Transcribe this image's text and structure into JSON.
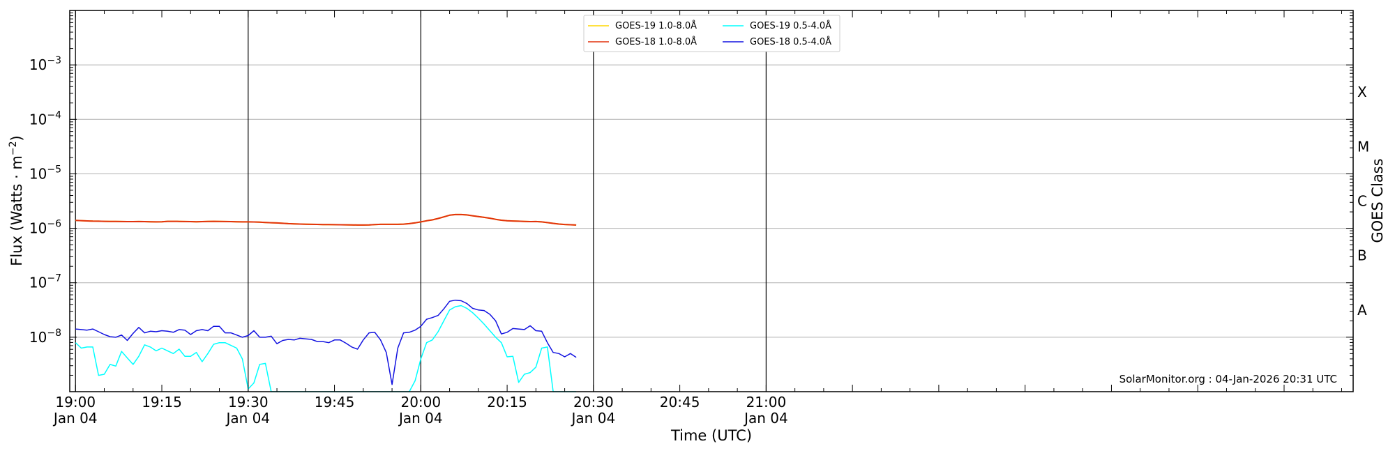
{
  "chart_data": {
    "type": "line",
    "xlabel": "Time (UTC)",
    "ylabel": "Flux (Watts · m$^{-2}$)",
    "ylabel_rendered": "Flux (Watts · m",
    "ylabel_unit_sup": "−2",
    "ylabel_close": ")",
    "right_ylabel": "GOES Class",
    "y_scale": "log",
    "ylim": [
      1e-09,
      0.01
    ],
    "xlim_minutes": [
      -1,
      222
    ],
    "grid": "horizontal at decades",
    "legend_position": "top-center",
    "x_ticks": [
      {
        "minutes": 0,
        "line1": "19:00",
        "line2": "Jan 04"
      },
      {
        "minutes": 15,
        "line1": "19:15",
        "line2": ""
      },
      {
        "minutes": 30,
        "line1": "19:30",
        "line2": "Jan 04"
      },
      {
        "minutes": 45,
        "line1": "19:45",
        "line2": ""
      },
      {
        "minutes": 60,
        "line1": "20:00",
        "line2": "Jan 04"
      },
      {
        "minutes": 75,
        "line1": "20:15",
        "line2": ""
      },
      {
        "minutes": 90,
        "line1": "20:30",
        "line2": "Jan 04"
      },
      {
        "minutes": 105,
        "line1": "20:45",
        "line2": ""
      },
      {
        "minutes": 120,
        "line1": "21:00",
        "line2": "Jan 04"
      }
    ],
    "y_ticks": [
      {
        "exp": -3,
        "label": "10",
        "sup": "−3"
      },
      {
        "exp": -4,
        "label": "10",
        "sup": "−4"
      },
      {
        "exp": -5,
        "label": "10",
        "sup": "−5"
      },
      {
        "exp": -6,
        "label": "10",
        "sup": "−6"
      },
      {
        "exp": -7,
        "label": "10",
        "sup": "−7"
      },
      {
        "exp": -8,
        "label": "10",
        "sup": "−8"
      }
    ],
    "goes_classes": [
      {
        "label": "X",
        "exp": -3.5
      },
      {
        "label": "M",
        "exp": -4.5
      },
      {
        "label": "C",
        "exp": -5.5
      },
      {
        "label": "B",
        "exp": -6.5
      },
      {
        "label": "A",
        "exp": -7.5
      }
    ],
    "x_minutes": [
      0,
      1,
      2,
      3,
      4,
      5,
      6,
      7,
      8,
      9,
      10,
      11,
      12,
      13,
      14,
      15,
      16,
      17,
      18,
      19,
      20,
      21,
      22,
      23,
      24,
      25,
      26,
      27,
      28,
      29,
      30,
      31,
      32,
      33,
      34,
      35,
      36,
      37,
      38,
      39,
      40,
      41,
      42,
      43,
      44,
      45,
      46,
      47,
      48,
      49,
      50,
      51,
      52,
      53,
      54,
      55,
      56,
      57,
      58,
      59,
      60,
      61,
      62,
      63,
      64,
      65,
      66,
      67,
      68,
      69,
      70,
      71,
      72,
      73,
      74,
      75,
      76,
      77,
      78,
      79,
      80,
      81,
      82,
      83,
      84,
      85,
      86,
      87
    ],
    "series": [
      {
        "name": "GOES-19 1.0-8.0Å",
        "color": "#ffd700",
        "log10_values": [
          -5.855,
          -5.86,
          -5.865,
          -5.868,
          -5.87,
          -5.872,
          -5.874,
          -5.875,
          -5.876,
          -5.878,
          -5.878,
          -5.876,
          -5.878,
          -5.88,
          -5.882,
          -5.88,
          -5.872,
          -5.872,
          -5.874,
          -5.876,
          -5.878,
          -5.88,
          -5.878,
          -5.874,
          -5.872,
          -5.874,
          -5.876,
          -5.878,
          -5.88,
          -5.882,
          -5.882,
          -5.884,
          -5.888,
          -5.893,
          -5.898,
          -5.902,
          -5.908,
          -5.914,
          -5.918,
          -5.922,
          -5.925,
          -5.927,
          -5.929,
          -5.931,
          -5.932,
          -5.934,
          -5.935,
          -5.936,
          -5.938,
          -5.94,
          -5.94,
          -5.938,
          -5.932,
          -5.928,
          -5.928,
          -5.928,
          -5.928,
          -5.924,
          -5.914,
          -5.9,
          -5.882,
          -5.862,
          -5.845,
          -5.82,
          -5.79,
          -5.76,
          -5.748,
          -5.748,
          -5.755,
          -5.77,
          -5.785,
          -5.8,
          -5.815,
          -5.835,
          -5.852,
          -5.862,
          -5.866,
          -5.87,
          -5.874,
          -5.878,
          -5.876,
          -5.882,
          -5.896,
          -5.91,
          -5.922,
          -5.93,
          -5.935,
          -5.94
        ]
      },
      {
        "name": "GOES-18 1.0-8.0Å",
        "color": "#e2320d",
        "log10_values": [
          -5.855,
          -5.86,
          -5.865,
          -5.868,
          -5.87,
          -5.872,
          -5.874,
          -5.875,
          -5.876,
          -5.878,
          -5.878,
          -5.876,
          -5.878,
          -5.88,
          -5.882,
          -5.88,
          -5.872,
          -5.872,
          -5.874,
          -5.876,
          -5.878,
          -5.88,
          -5.878,
          -5.874,
          -5.872,
          -5.874,
          -5.876,
          -5.878,
          -5.88,
          -5.882,
          -5.882,
          -5.884,
          -5.888,
          -5.893,
          -5.898,
          -5.902,
          -5.908,
          -5.914,
          -5.918,
          -5.922,
          -5.925,
          -5.927,
          -5.929,
          -5.931,
          -5.932,
          -5.934,
          -5.935,
          -5.936,
          -5.938,
          -5.94,
          -5.94,
          -5.938,
          -5.932,
          -5.928,
          -5.928,
          -5.928,
          -5.928,
          -5.924,
          -5.914,
          -5.9,
          -5.882,
          -5.862,
          -5.845,
          -5.82,
          -5.79,
          -5.76,
          -5.748,
          -5.748,
          -5.755,
          -5.77,
          -5.785,
          -5.8,
          -5.815,
          -5.835,
          -5.852,
          -5.862,
          -5.866,
          -5.87,
          -5.874,
          -5.878,
          -5.876,
          -5.882,
          -5.896,
          -5.91,
          -5.922,
          -5.93,
          -5.935,
          -5.94
        ]
      },
      {
        "name": "GOES-19 0.5-4.0Å",
        "color": "#00ffff",
        "log10_values": [
          -8.1,
          -8.2,
          -8.18,
          -8.18,
          -8.7,
          -8.68,
          -8.5,
          -8.53,
          -8.26,
          -8.38,
          -8.5,
          -8.35,
          -8.14,
          -8.18,
          -8.25,
          -8.2,
          -8.25,
          -8.3,
          -8.22,
          -8.35,
          -8.35,
          -8.28,
          -8.45,
          -8.3,
          -8.13,
          -8.1,
          -8.1,
          -8.15,
          -8.2,
          -8.4,
          -8.95,
          -8.84,
          -8.5,
          -8.48,
          -9.0,
          -9.0,
          -9.0,
          -9.0,
          -9.0,
          -9.0,
          -9.0,
          -9.0,
          -9.0,
          -9.0,
          -9.0,
          -9.0,
          -9.0,
          -9.0,
          -9.0,
          -9.0,
          -9.0,
          -9.0,
          -9.0,
          -9.0,
          -9.0,
          -9.0,
          -9.0,
          -9.0,
          -9.0,
          -8.8,
          -8.4,
          -8.1,
          -8.05,
          -7.9,
          -7.7,
          -7.5,
          -7.44,
          -7.42,
          -7.47,
          -7.55,
          -7.65,
          -7.76,
          -7.88,
          -8.0,
          -8.1,
          -8.36,
          -8.35,
          -8.83,
          -8.68,
          -8.65,
          -8.55,
          -8.2,
          -8.18,
          -9.0,
          -9.0,
          -9.0,
          -9.0,
          -9.0
        ]
      },
      {
        "name": "GOES-18 0.5-4.0Å",
        "color": "#1212e0",
        "log10_values": [
          -7.85,
          -7.86,
          -7.87,
          -7.85,
          -7.9,
          -7.95,
          -7.99,
          -8.0,
          -7.96,
          -8.06,
          -7.93,
          -7.82,
          -7.92,
          -7.89,
          -7.9,
          -7.88,
          -7.89,
          -7.91,
          -7.86,
          -7.87,
          -7.95,
          -7.88,
          -7.86,
          -7.88,
          -7.8,
          -7.8,
          -7.92,
          -7.92,
          -7.96,
          -8.0,
          -7.97,
          -7.88,
          -8.0,
          -8.0,
          -7.98,
          -8.12,
          -8.06,
          -8.04,
          -8.05,
          -8.02,
          -8.03,
          -8.04,
          -8.08,
          -8.08,
          -8.1,
          -8.05,
          -8.05,
          -8.11,
          -8.18,
          -8.22,
          -8.05,
          -7.92,
          -7.91,
          -8.05,
          -8.28,
          -8.87,
          -8.2,
          -7.92,
          -7.91,
          -7.87,
          -7.8,
          -7.67,
          -7.64,
          -7.6,
          -7.48,
          -7.34,
          -7.32,
          -7.33,
          -7.38,
          -7.47,
          -7.5,
          -7.51,
          -7.58,
          -7.7,
          -7.94,
          -7.91,
          -7.84,
          -7.85,
          -7.86,
          -7.79,
          -7.88,
          -7.89,
          -8.1,
          -8.28,
          -8.3,
          -8.36,
          -8.3,
          -8.37
        ]
      }
    ]
  },
  "watermark": "SolarMonitor.org : 04-Jan-2026 20:31 UTC"
}
